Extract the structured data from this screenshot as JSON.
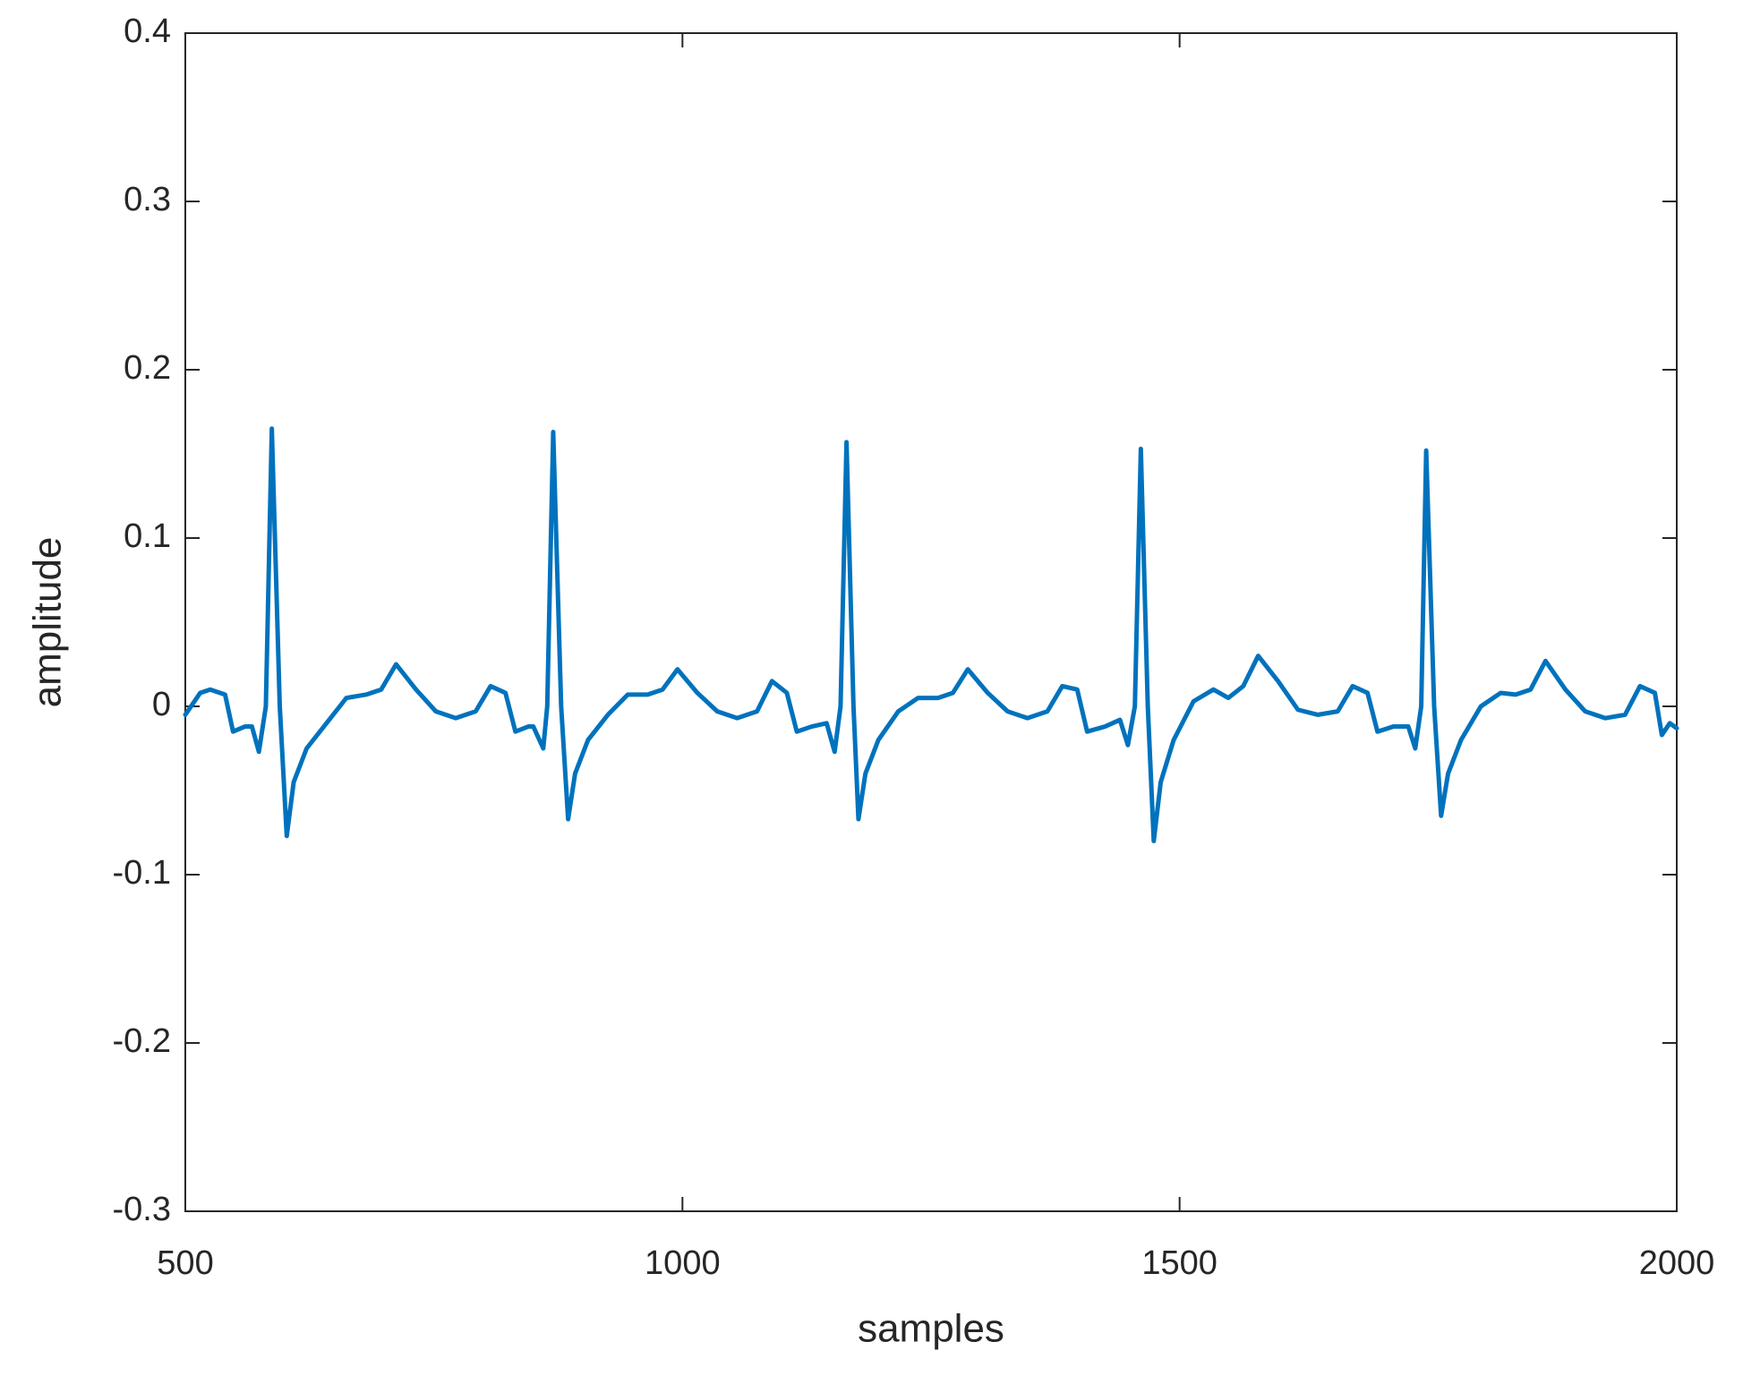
{
  "chart_data": {
    "type": "line",
    "xlabel": "samples",
    "ylabel": "amplitude",
    "color": "#0072BD",
    "xlim": [
      500,
      2000
    ],
    "xticks": [
      500,
      1000,
      1500,
      2000
    ],
    "ylim": [
      -0.3,
      0.4
    ],
    "yticks": [
      -0.3,
      -0.2,
      -0.1,
      0,
      0.1,
      0.2,
      0.3,
      0.4
    ],
    "x": [
      500,
      515,
      525,
      540,
      548,
      560,
      567,
      574,
      581,
      587,
      595,
      602,
      609,
      622,
      642,
      662,
      682,
      697,
      712,
      732,
      752,
      772,
      792,
      807,
      822,
      832,
      845,
      850,
      860,
      864,
      870,
      878,
      885,
      892,
      905,
      925,
      945,
      965,
      980,
      995,
      1015,
      1035,
      1055,
      1075,
      1090,
      1105,
      1115,
      1130,
      1145,
      1153,
      1159,
      1165,
      1172,
      1177,
      1184,
      1197,
      1217,
      1237,
      1257,
      1272,
      1287,
      1307,
      1327,
      1347,
      1367,
      1382,
      1397,
      1407,
      1425,
      1440,
      1448,
      1455,
      1461,
      1468,
      1474,
      1481,
      1494,
      1514,
      1534,
      1549,
      1564,
      1579,
      1599,
      1619,
      1639,
      1659,
      1674,
      1689,
      1699,
      1715,
      1730,
      1737,
      1743,
      1748,
      1756,
      1763,
      1770,
      1783,
      1803,
      1823,
      1838,
      1853,
      1868,
      1888,
      1908,
      1928,
      1948,
      1963,
      1978,
      1985,
      1993,
      2000
    ],
    "values": [
      -0.005,
      0.008,
      0.01,
      0.007,
      -0.015,
      -0.012,
      -0.012,
      -0.027,
      0.0,
      0.165,
      0.0,
      -0.077,
      -0.045,
      -0.025,
      -0.01,
      0.005,
      0.007,
      0.01,
      0.025,
      0.01,
      -0.003,
      -0.007,
      -0.003,
      0.012,
      0.008,
      -0.015,
      -0.012,
      -0.012,
      -0.025,
      0.0,
      0.163,
      0.0,
      -0.067,
      -0.04,
      -0.02,
      -0.005,
      0.007,
      0.007,
      0.01,
      0.022,
      0.008,
      -0.003,
      -0.007,
      -0.003,
      0.015,
      0.008,
      -0.015,
      -0.012,
      -0.01,
      -0.027,
      0.0,
      0.157,
      0.0,
      -0.067,
      -0.04,
      -0.02,
      -0.003,
      0.005,
      0.005,
      0.008,
      0.022,
      0.008,
      -0.003,
      -0.007,
      -0.003,
      0.012,
      0.01,
      -0.015,
      -0.012,
      -0.008,
      -0.023,
      0.0,
      0.153,
      0.0,
      -0.08,
      -0.045,
      -0.02,
      0.003,
      0.01,
      0.005,
      0.012,
      0.03,
      0.015,
      -0.002,
      -0.005,
      -0.003,
      0.012,
      0.008,
      -0.015,
      -0.012,
      -0.012,
      -0.025,
      0.0,
      0.152,
      0.0,
      -0.065,
      -0.04,
      -0.02,
      0.0,
      0.008,
      0.007,
      0.01,
      0.027,
      0.01,
      -0.003,
      -0.007,
      -0.005,
      0.012,
      0.008,
      -0.017,
      -0.01,
      -0.013
    ]
  }
}
